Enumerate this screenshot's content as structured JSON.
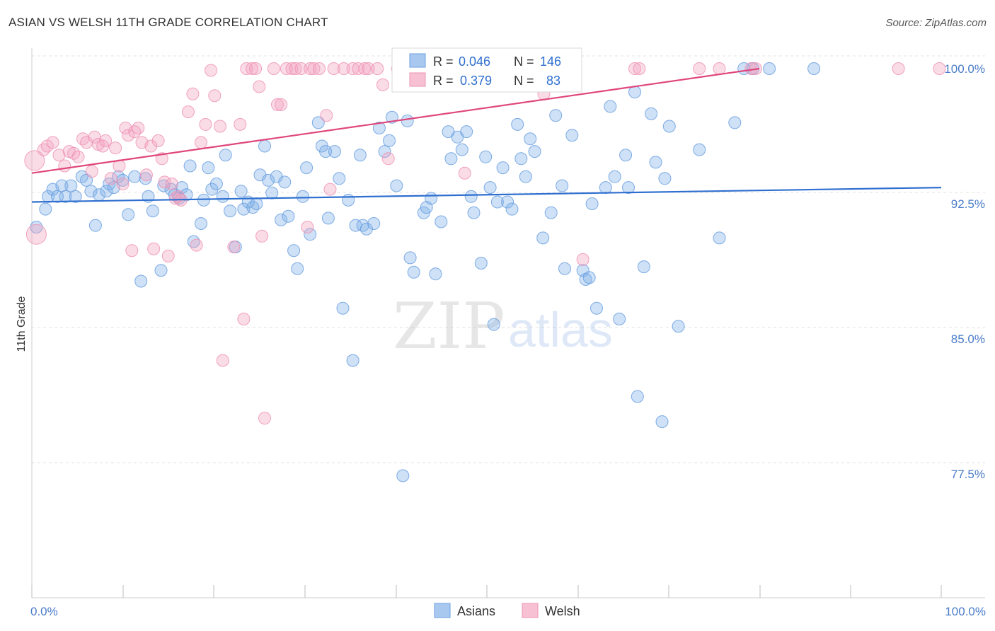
{
  "title": "ASIAN VS WELSH 11TH GRADE CORRELATION CHART",
  "source": "Source: ZipAtlas.com",
  "chart_data": {
    "type": "scatter",
    "title": "ASIAN VS WELSH 11TH GRADE CORRELATION CHART",
    "xlabel": "",
    "ylabel": "11th Grade",
    "xlim": [
      0,
      100
    ],
    "ylim": [
      71.5,
      101.5
    ],
    "x_tick_labels": [
      "0.0%",
      "100.0%"
    ],
    "y_ticks": [
      77.5,
      85.0,
      92.5,
      100.0
    ],
    "y_tick_labels": [
      "77.5%",
      "85.0%",
      "92.5%",
      "100.0%"
    ],
    "grid": true,
    "legend_position": "top-center",
    "watermark": "ZIPatlas",
    "stats": [
      {
        "series": "Asians",
        "r_label": "R =",
        "r": "0.046",
        "n_label": "N =",
        "n": "146"
      },
      {
        "series": "Welsh",
        "r_label": "R =",
        "r": "0.379",
        "n_label": "N =",
        "n": "83"
      }
    ],
    "series": [
      {
        "name": "Asians",
        "color": "#7fb0e8",
        "line_color": "#2f6fcf",
        "trend": {
          "x": [
            0,
            100
          ],
          "y": [
            92.6,
            93.4
          ]
        },
        "points": [
          [
            0.5,
            91.2
          ],
          [
            1.5,
            92.2
          ],
          [
            1.8,
            92.9
          ],
          [
            2.3,
            93.3
          ],
          [
            2.8,
            92.9
          ],
          [
            3.3,
            93.5
          ],
          [
            3.7,
            92.9
          ],
          [
            4.3,
            93.5
          ],
          [
            4.8,
            92.9
          ],
          [
            5.5,
            94.0
          ],
          [
            6.0,
            93.8
          ],
          [
            6.5,
            93.2
          ],
          [
            7.0,
            91.3
          ],
          [
            7.4,
            93.0
          ],
          [
            8.2,
            93.2
          ],
          [
            8.5,
            93.6
          ],
          [
            9.0,
            93.4
          ],
          [
            9.5,
            94.0
          ],
          [
            10.0,
            93.8
          ],
          [
            10.6,
            91.9
          ],
          [
            11.3,
            94.0
          ],
          [
            12.0,
            88.2
          ],
          [
            12.5,
            93.9
          ],
          [
            12.8,
            92.9
          ],
          [
            13.3,
            92.1
          ],
          [
            14.2,
            88.8
          ],
          [
            14.5,
            93.5
          ],
          [
            15.3,
            93.3
          ],
          [
            15.7,
            93.0
          ],
          [
            16.2,
            92.8
          ],
          [
            16.5,
            93.4
          ],
          [
            17.0,
            93.0
          ],
          [
            17.4,
            94.6
          ],
          [
            17.8,
            90.4
          ],
          [
            18.6,
            91.4
          ],
          [
            18.9,
            92.7
          ],
          [
            19.4,
            94.5
          ],
          [
            19.8,
            93.3
          ],
          [
            20.3,
            93.6
          ],
          [
            21.0,
            92.9
          ],
          [
            21.3,
            95.2
          ],
          [
            21.8,
            92.1
          ],
          [
            22.4,
            90.1
          ],
          [
            23.0,
            93.2
          ],
          [
            23.3,
            92.2
          ],
          [
            23.8,
            92.6
          ],
          [
            24.3,
            92.3
          ],
          [
            24.7,
            92.5
          ],
          [
            25.1,
            94.1
          ],
          [
            25.6,
            95.7
          ],
          [
            26.0,
            93.8
          ],
          [
            26.4,
            93.1
          ],
          [
            26.9,
            94.0
          ],
          [
            27.4,
            91.6
          ],
          [
            27.8,
            93.7
          ],
          [
            28.2,
            91.8
          ],
          [
            28.8,
            89.9
          ],
          [
            29.2,
            88.9
          ],
          [
            29.8,
            92.9
          ],
          [
            30.2,
            94.5
          ],
          [
            30.6,
            90.8
          ],
          [
            31.5,
            97.0
          ],
          [
            31.9,
            95.7
          ],
          [
            32.3,
            95.4
          ],
          [
            32.6,
            91.7
          ],
          [
            33.3,
            95.4
          ],
          [
            33.8,
            93.9
          ],
          [
            34.2,
            86.7
          ],
          [
            34.8,
            92.7
          ],
          [
            35.3,
            83.8
          ],
          [
            35.6,
            91.3
          ],
          [
            36.1,
            95.2
          ],
          [
            36.4,
            91.3
          ],
          [
            36.8,
            91.1
          ],
          [
            37.6,
            91.4
          ],
          [
            38.2,
            96.7
          ],
          [
            38.8,
            95.4
          ],
          [
            39.3,
            96.0
          ],
          [
            39.6,
            97.3
          ],
          [
            40.1,
            93.5
          ],
          [
            40.8,
            77.4
          ],
          [
            41.3,
            97.1
          ],
          [
            41.6,
            89.5
          ],
          [
            42.0,
            88.7
          ],
          [
            43.1,
            92.0
          ],
          [
            43.4,
            92.3
          ],
          [
            43.9,
            92.8
          ],
          [
            44.4,
            88.6
          ],
          [
            45.0,
            91.5
          ],
          [
            45.8,
            96.5
          ],
          [
            46.1,
            95.0
          ],
          [
            46.8,
            96.2
          ],
          [
            47.3,
            95.5
          ],
          [
            47.8,
            96.5
          ],
          [
            48.3,
            92.9
          ],
          [
            48.6,
            92.0
          ],
          [
            49.4,
            89.2
          ],
          [
            49.9,
            95.1
          ],
          [
            50.4,
            93.4
          ],
          [
            50.8,
            85.8
          ],
          [
            51.2,
            92.6
          ],
          [
            51.8,
            94.5
          ],
          [
            52.3,
            92.6
          ],
          [
            52.8,
            92.2
          ],
          [
            53.4,
            96.9
          ],
          [
            53.8,
            95.0
          ],
          [
            54.3,
            94.0
          ],
          [
            54.8,
            96.1
          ],
          [
            55.3,
            95.4
          ],
          [
            56.2,
            90.6
          ],
          [
            57.1,
            92.0
          ],
          [
            57.6,
            97.4
          ],
          [
            58.3,
            93.5
          ],
          [
            58.6,
            88.9
          ],
          [
            59.4,
            96.3
          ],
          [
            60.6,
            88.8
          ],
          [
            60.9,
            88.3
          ],
          [
            61.3,
            88.4
          ],
          [
            61.6,
            92.5
          ],
          [
            62.1,
            86.7
          ],
          [
            63.1,
            93.4
          ],
          [
            63.6,
            97.9
          ],
          [
            64.1,
            94.0
          ],
          [
            64.6,
            86.1
          ],
          [
            65.3,
            95.2
          ],
          [
            65.6,
            93.4
          ],
          [
            66.3,
            98.7
          ],
          [
            66.6,
            81.8
          ],
          [
            67.3,
            89.0
          ],
          [
            68.1,
            97.5
          ],
          [
            68.6,
            94.8
          ],
          [
            69.3,
            80.4
          ],
          [
            69.6,
            93.9
          ],
          [
            70.1,
            96.8
          ],
          [
            71.1,
            85.7
          ],
          [
            73.4,
            95.5
          ],
          [
            75.6,
            90.6
          ],
          [
            77.3,
            97.0
          ],
          [
            78.3,
            100.0
          ],
          [
            79.3,
            100.0
          ],
          [
            81.1,
            100.0
          ],
          [
            86.0,
            100.0
          ]
        ]
      },
      {
        "name": "Welsh",
        "color": "#f3a3bf",
        "line_color": "#e0457b",
        "trend": {
          "x": [
            0,
            80
          ],
          "y": [
            94.2,
            100.0
          ]
        },
        "points": [
          [
            0.3,
            94.9
          ],
          [
            0.5,
            90.8
          ],
          [
            1.3,
            95.5
          ],
          [
            1.7,
            95.7
          ],
          [
            2.3,
            95.9
          ],
          [
            3.0,
            95.2
          ],
          [
            3.6,
            94.6
          ],
          [
            4.1,
            95.4
          ],
          [
            4.6,
            95.3
          ],
          [
            5.1,
            95.1
          ],
          [
            5.6,
            96.1
          ],
          [
            6.0,
            95.9
          ],
          [
            6.6,
            94.3
          ],
          [
            6.9,
            96.2
          ],
          [
            7.3,
            95.8
          ],
          [
            7.8,
            95.7
          ],
          [
            8.1,
            96.0
          ],
          [
            8.7,
            93.9
          ],
          [
            9.2,
            95.6
          ],
          [
            9.6,
            94.6
          ],
          [
            10.0,
            93.6
          ],
          [
            10.3,
            96.7
          ],
          [
            10.6,
            96.3
          ],
          [
            11.0,
            89.9
          ],
          [
            11.3,
            96.5
          ],
          [
            11.7,
            96.7
          ],
          [
            12.1,
            95.9
          ],
          [
            12.6,
            94.1
          ],
          [
            13.1,
            95.7
          ],
          [
            13.4,
            90.0
          ],
          [
            13.9,
            96.0
          ],
          [
            14.3,
            95.0
          ],
          [
            14.6,
            93.7
          ],
          [
            15.0,
            89.6
          ],
          [
            15.4,
            93.6
          ],
          [
            15.8,
            92.8
          ],
          [
            16.1,
            92.9
          ],
          [
            16.4,
            92.7
          ],
          [
            17.2,
            97.6
          ],
          [
            17.7,
            98.6
          ],
          [
            18.1,
            90.2
          ],
          [
            18.6,
            95.9
          ],
          [
            19.1,
            96.9
          ],
          [
            19.7,
            99.9
          ],
          [
            20.1,
            98.5
          ],
          [
            20.7,
            96.8
          ],
          [
            21.0,
            83.8
          ],
          [
            22.2,
            90.1
          ],
          [
            22.9,
            96.9
          ],
          [
            23.3,
            86.1
          ],
          [
            23.6,
            100.0
          ],
          [
            24.2,
            100.0
          ],
          [
            24.6,
            100.0
          ],
          [
            25.0,
            99.0
          ],
          [
            25.3,
            90.7
          ],
          [
            25.6,
            80.6
          ],
          [
            26.6,
            100.0
          ],
          [
            27.0,
            98.0
          ],
          [
            27.4,
            98.0
          ],
          [
            28.0,
            100.0
          ],
          [
            28.6,
            100.0
          ],
          [
            29.0,
            100.0
          ],
          [
            29.6,
            100.0
          ],
          [
            30.3,
            91.2
          ],
          [
            30.6,
            100.0
          ],
          [
            31.0,
            100.0
          ],
          [
            31.6,
            100.0
          ],
          [
            32.4,
            97.4
          ],
          [
            32.8,
            93.3
          ],
          [
            33.2,
            100.0
          ],
          [
            34.3,
            100.0
          ],
          [
            35.3,
            100.0
          ],
          [
            35.9,
            100.0
          ],
          [
            36.6,
            100.0
          ],
          [
            37.0,
            100.0
          ],
          [
            38.0,
            100.0
          ],
          [
            38.6,
            99.1
          ],
          [
            39.2,
            95.0
          ],
          [
            40.2,
            100.0
          ],
          [
            44.3,
            100.0
          ],
          [
            47.6,
            94.2
          ],
          [
            56.3,
            98.6
          ],
          [
            60.6,
            89.4
          ],
          [
            66.3,
            100.0
          ],
          [
            66.8,
            100.0
          ],
          [
            73.4,
            100.0
          ],
          [
            75.6,
            100.0
          ],
          [
            79.1,
            100.0
          ],
          [
            79.6,
            100.0
          ],
          [
            95.3,
            100.0
          ],
          [
            99.8,
            100.0
          ]
        ]
      }
    ]
  },
  "legend": {
    "items": [
      {
        "label": "Asians",
        "color": "#a9c8f0",
        "stroke": "#6a9fe0"
      },
      {
        "label": "Welsh",
        "color": "#f7c1d3",
        "stroke": "#ee93b4"
      }
    ]
  }
}
